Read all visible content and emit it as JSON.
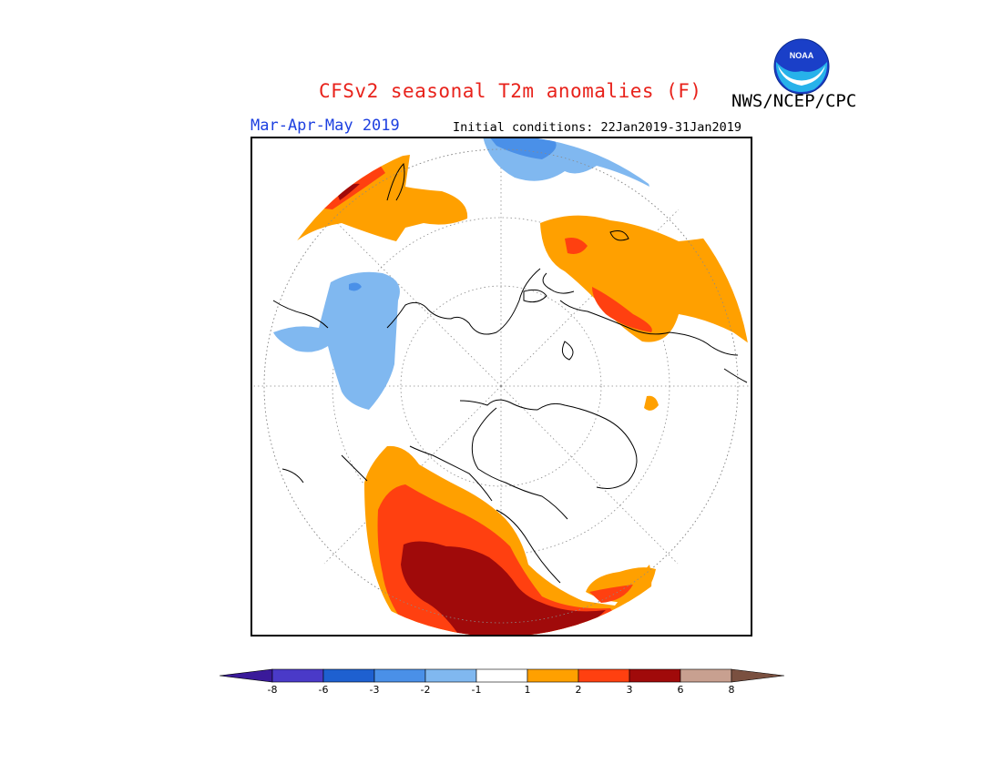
{
  "header": {
    "title": "CFSv2 seasonal T2m anomalies (F)",
    "agency": "NWS/NCEP/CPC",
    "season": "Mar-Apr-May 2019",
    "initial_conditions": "Initial conditions: 22Jan2019-31Jan2019"
  },
  "logo": {
    "text": "NOAA",
    "colors": [
      "#2b4fd1",
      "#00a0e0"
    ]
  },
  "map": {
    "projection": "north-polar-stereographic",
    "anomaly_regions": [
      "orange",
      "red",
      "dark-red",
      "light-blue",
      "blue"
    ]
  },
  "colorbar": {
    "ticks": [
      "-8",
      "-6",
      "-3",
      "-2",
      "-1",
      "1",
      "2",
      "3",
      "6",
      "8"
    ],
    "colors": [
      "#3a1a9a",
      "#4a3ac8",
      "#1e60d0",
      "#4a90e8",
      "#80b8f0",
      "#ffffff",
      "#ffa000",
      "#ff4010",
      "#a00a0a",
      "#c8a090",
      "#7a5040"
    ]
  }
}
